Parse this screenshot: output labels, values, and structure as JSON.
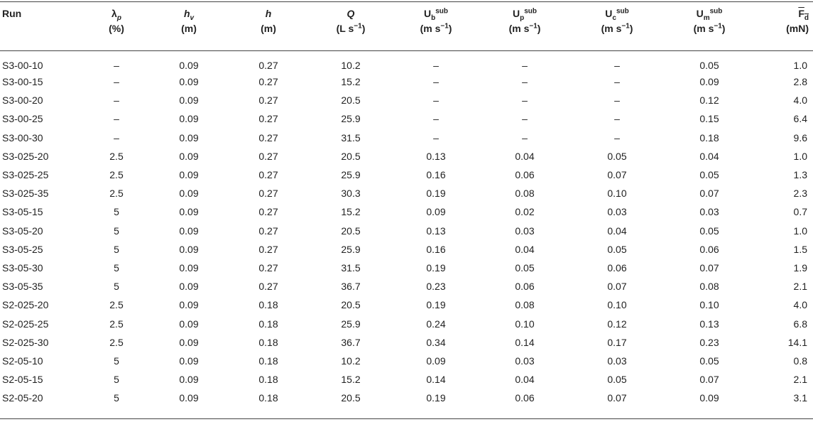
{
  "table": {
    "headers": [
      {
        "label": "Run",
        "unit": ""
      },
      {
        "label": "λp",
        "unit": "(%)"
      },
      {
        "label": "hv",
        "unit": "(m)"
      },
      {
        "label": "h",
        "unit": "(m)"
      },
      {
        "label": "Q",
        "unit": "(L s−1)"
      },
      {
        "label": "Ubsub",
        "unit": "(m s−1)"
      },
      {
        "label": "Upsub",
        "unit": "(m s−1)"
      },
      {
        "label": "Ucsub",
        "unit": "(m s−1)"
      },
      {
        "label": "Umsub",
        "unit": "(m s−1)"
      },
      {
        "label": "Fd",
        "unit": "(mN)"
      }
    ],
    "rows": [
      [
        "S3-00-10",
        "–",
        "0.09",
        "0.27",
        "10.2",
        "–",
        "–",
        "–",
        "0.05",
        "1.0"
      ],
      [
        "S3-00-15",
        "–",
        "0.09",
        "0.27",
        "15.2",
        "–",
        "–",
        "–",
        "0.09",
        "2.8"
      ],
      [
        "S3-00-20",
        "–",
        "0.09",
        "0.27",
        "20.5",
        "–",
        "–",
        "–",
        "0.12",
        "4.0"
      ],
      [
        "S3-00-25",
        "–",
        "0.09",
        "0.27",
        "25.9",
        "–",
        "–",
        "–",
        "0.15",
        "6.4"
      ],
      [
        "S3-00-30",
        "–",
        "0.09",
        "0.27",
        "31.5",
        "–",
        "–",
        "–",
        "0.18",
        "9.6"
      ],
      [
        "S3-025-20",
        "2.5",
        "0.09",
        "0.27",
        "20.5",
        "0.13",
        "0.04",
        "0.05",
        "0.04",
        "1.0"
      ],
      [
        "S3-025-25",
        "2.5",
        "0.09",
        "0.27",
        "25.9",
        "0.16",
        "0.06",
        "0.07",
        "0.05",
        "1.3"
      ],
      [
        "S3-025-35",
        "2.5",
        "0.09",
        "0.27",
        "30.3",
        "0.19",
        "0.08",
        "0.10",
        "0.07",
        "2.3"
      ],
      [
        "S3-05-15",
        "5",
        "0.09",
        "0.27",
        "15.2",
        "0.09",
        "0.02",
        "0.03",
        "0.03",
        "0.7"
      ],
      [
        "S3-05-20",
        "5",
        "0.09",
        "0.27",
        "20.5",
        "0.13",
        "0.03",
        "0.04",
        "0.05",
        "1.0"
      ],
      [
        "S3-05-25",
        "5",
        "0.09",
        "0.27",
        "25.9",
        "0.16",
        "0.04",
        "0.05",
        "0.06",
        "1.5"
      ],
      [
        "S3-05-30",
        "5",
        "0.09",
        "0.27",
        "31.5",
        "0.19",
        "0.05",
        "0.06",
        "0.07",
        "1.9"
      ],
      [
        "S3-05-35",
        "5",
        "0.09",
        "0.27",
        "36.7",
        "0.23",
        "0.06",
        "0.07",
        "0.08",
        "2.1"
      ],
      [
        "S2-025-20",
        "2.5",
        "0.09",
        "0.18",
        "20.5",
        "0.19",
        "0.08",
        "0.10",
        "0.10",
        "4.0"
      ],
      [
        "S2-025-25",
        "2.5",
        "0.09",
        "0.18",
        "25.9",
        "0.24",
        "0.10",
        "0.12",
        "0.13",
        "6.8"
      ],
      [
        "S2-025-30",
        "2.5",
        "0.09",
        "0.18",
        "36.7",
        "0.34",
        "0.14",
        "0.17",
        "0.23",
        "14.1"
      ],
      [
        "S2-05-10",
        "5",
        "0.09",
        "0.18",
        "10.2",
        "0.09",
        "0.03",
        "0.03",
        "0.05",
        "0.8"
      ],
      [
        "S2-05-15",
        "5",
        "0.09",
        "0.18",
        "15.2",
        "0.14",
        "0.04",
        "0.05",
        "0.07",
        "2.1"
      ],
      [
        "S2-05-20",
        "5",
        "0.09",
        "0.18",
        "20.5",
        "0.19",
        "0.06",
        "0.07",
        "0.09",
        "3.1"
      ]
    ]
  }
}
